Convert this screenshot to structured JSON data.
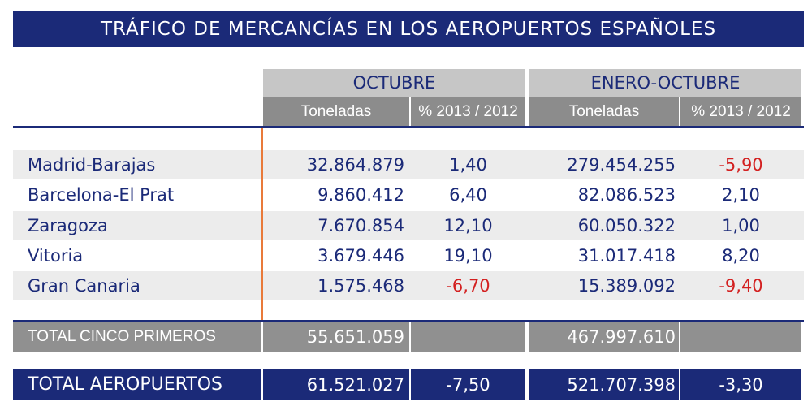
{
  "title": "TRÁFICO DE MERCANCÍAS EN LOS AEROPUERTOS ESPAÑOLES",
  "headers": {
    "group1": "OCTUBRE",
    "group2": "ENERO-OCTUBRE",
    "sub_toneladas": "Toneladas",
    "sub_percent": "% 2013 / 2012"
  },
  "rows": [
    {
      "airport": "Madrid-Barajas",
      "oct_tons": "32.864.879",
      "oct_pct": "1,40",
      "ytd_tons": "279.454.255",
      "ytd_pct": "-5,90"
    },
    {
      "airport": "Barcelona-El Prat",
      "oct_tons": "9.860.412",
      "oct_pct": "6,40",
      "ytd_tons": "82.086.523",
      "ytd_pct": "2,10"
    },
    {
      "airport": "Zaragoza",
      "oct_tons": "7.670.854",
      "oct_pct": "12,10",
      "ytd_tons": "60.050.322",
      "ytd_pct": "1,00"
    },
    {
      "airport": "Vitoria",
      "oct_tons": "3.679.446",
      "oct_pct": "19,10",
      "ytd_tons": "31.017.418",
      "ytd_pct": "8,20"
    },
    {
      "airport": "Gran Canaria",
      "oct_tons": "1.575.468",
      "oct_pct": "-6,70",
      "ytd_tons": "15.389.092",
      "ytd_pct": "-9,40"
    }
  ],
  "total_five": {
    "label": "TOTAL CINCO PRIMEROS",
    "oct_tons": "55.651.059",
    "ytd_tons": "467.997.610"
  },
  "total_airports": {
    "label": "TOTAL AEROPUERTOS",
    "oct_tons": "61.521.027",
    "oct_pct": "-7,50",
    "ytd_tons": "521.707.398",
    "ytd_pct": "-3,30"
  },
  "colors": {
    "navy": "#1b2a78",
    "negative": "#d32020",
    "accent_line": "#e97a3a"
  }
}
